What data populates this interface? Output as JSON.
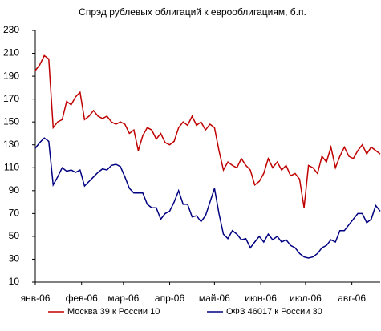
{
  "chart_data": {
    "type": "line",
    "title": "Спрэд рублевых облигаций к еврооблигациям, б.п.",
    "x": [
      0,
      3,
      6,
      9,
      12,
      15,
      18,
      21,
      24,
      27,
      30,
      33,
      36,
      39,
      42,
      45,
      48,
      51,
      54,
      57,
      60,
      63,
      66,
      69,
      72,
      75,
      78,
      81,
      84,
      87,
      90,
      93,
      96,
      99,
      102,
      105,
      108,
      111,
      114,
      117,
      120,
      123,
      126,
      129,
      132,
      135,
      138,
      141,
      144,
      147,
      150,
      153,
      156,
      159,
      162,
      165,
      168,
      171,
      174,
      177,
      180,
      183,
      186,
      189,
      192,
      195,
      198,
      201,
      204,
      207,
      210,
      213,
      216,
      219,
      222,
      225,
      228,
      231
    ],
    "series": [
      {
        "name": "Москва 39 к России 10",
        "color": "#c00000",
        "values": [
          195,
          200,
          208,
          205,
          145,
          150,
          152,
          168,
          165,
          172,
          176,
          152,
          155,
          160,
          155,
          153,
          155,
          150,
          148,
          150,
          148,
          140,
          143,
          125,
          138,
          145,
          143,
          135,
          140,
          132,
          130,
          133,
          145,
          150,
          147,
          155,
          147,
          150,
          143,
          148,
          145,
          125,
          108,
          115,
          112,
          110,
          118,
          112,
          108,
          95,
          98,
          105,
          118,
          110,
          115,
          108,
          112,
          103,
          105,
          100,
          75,
          112,
          110,
          105,
          120,
          115,
          128,
          110,
          120,
          128,
          120,
          118,
          125,
          130,
          122,
          128,
          125,
          122
        ]
      },
      {
        "name": "ОФЗ 46017 к России 30",
        "color": "#000080",
        "values": [
          127,
          132,
          136,
          133,
          95,
          102,
          110,
          107,
          108,
          106,
          108,
          94,
          98,
          102,
          106,
          109,
          108,
          112,
          113,
          111,
          102,
          92,
          88,
          88,
          88,
          78,
          75,
          75,
          65,
          70,
          72,
          80,
          90,
          78,
          78,
          67,
          68,
          63,
          68,
          80,
          92,
          70,
          52,
          48,
          55,
          52,
          47,
          48,
          40,
          45,
          50,
          45,
          52,
          47,
          50,
          45,
          47,
          42,
          40,
          35,
          32,
          31,
          32,
          35,
          40,
          42,
          47,
          45,
          55,
          55,
          60,
          65,
          70,
          70,
          62,
          65,
          77,
          72
        ]
      }
    ],
    "xlim": [
      0,
      231
    ],
    "xticks": [
      {
        "value": 0,
        "label": "янв-06"
      },
      {
        "value": 31,
        "label": "фев-06"
      },
      {
        "value": 59,
        "label": "мар-06"
      },
      {
        "value": 90,
        "label": "апр-06"
      },
      {
        "value": 120,
        "label": "май-06"
      },
      {
        "value": 151,
        "label": "июн-06"
      },
      {
        "value": 181,
        "label": "июл-06"
      },
      {
        "value": 212,
        "label": "авг-06"
      }
    ],
    "ylim": [
      10,
      230
    ],
    "yticks": [
      10,
      30,
      50,
      70,
      90,
      110,
      130,
      150,
      170,
      190,
      210,
      230
    ],
    "grid": false,
    "legend": "bottom"
  }
}
